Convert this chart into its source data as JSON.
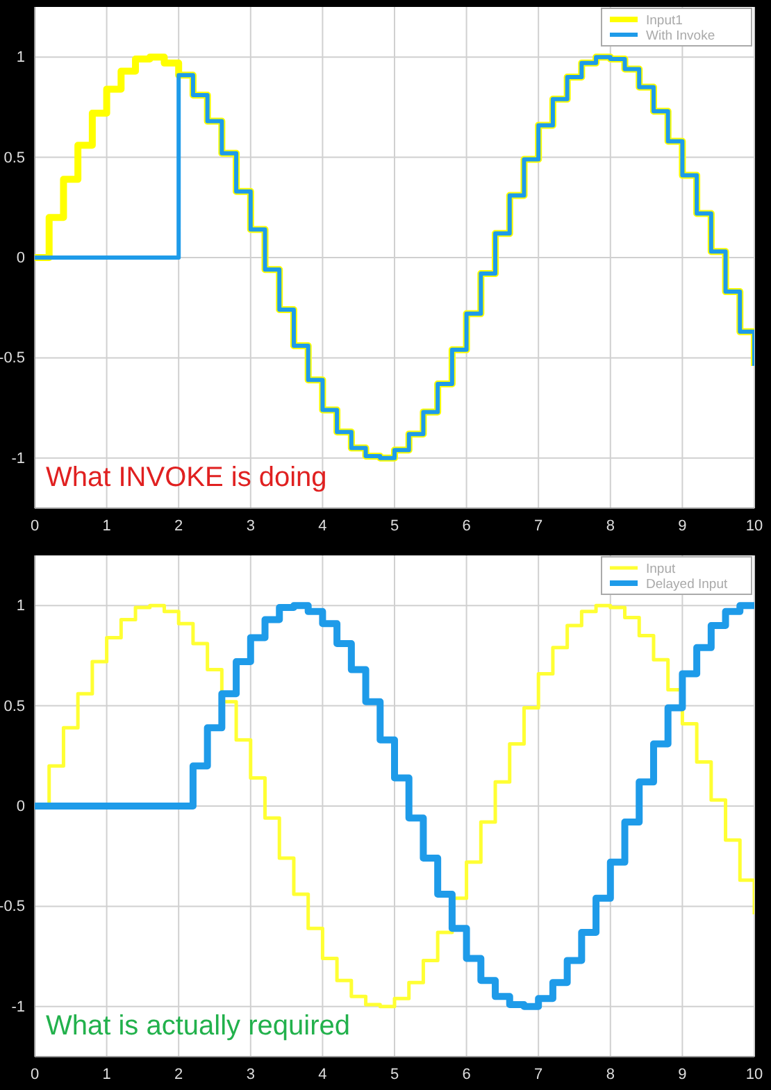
{
  "chart_data": [
    {
      "type": "step",
      "x": [
        0,
        0.2,
        0.4,
        0.6,
        0.8,
        1,
        1.2,
        1.4,
        1.6,
        1.8,
        2,
        2.2,
        2.4,
        2.6,
        2.8,
        3,
        3.2,
        3.4,
        3.6,
        3.8,
        4,
        4.2,
        4.4,
        4.6,
        4.8,
        5,
        5.2,
        5.4,
        5.6,
        5.8,
        6,
        6.2,
        6.4,
        6.6,
        6.8,
        7,
        7.2,
        7.4,
        7.6,
        7.8,
        8,
        8.2,
        8.4,
        8.6,
        8.8,
        9,
        9.2,
        9.4,
        9.6,
        9.8,
        10
      ],
      "series": [
        {
          "name": "Input1",
          "color": "#ffff00",
          "values": [
            0,
            0.2,
            0.39,
            0.56,
            0.72,
            0.84,
            0.93,
            0.99,
            1.0,
            0.97,
            0.91,
            0.81,
            0.68,
            0.52,
            0.33,
            0.14,
            -0.06,
            -0.26,
            -0.44,
            -0.61,
            -0.76,
            -0.87,
            -0.95,
            -0.99,
            -1.0,
            -0.96,
            -0.88,
            -0.77,
            -0.63,
            -0.46,
            -0.28,
            -0.08,
            0.12,
            0.31,
            0.49,
            0.66,
            0.79,
            0.9,
            0.97,
            1.0,
            0.99,
            0.94,
            0.85,
            0.73,
            0.58,
            0.41,
            0.22,
            0.03,
            -0.17,
            -0.37,
            -0.54
          ]
        },
        {
          "name": "With Invoke",
          "color": "#1e9be9",
          "values": [
            0,
            0,
            0,
            0,
            0,
            0,
            0,
            0,
            0,
            0,
            0.91,
            0.81,
            0.68,
            0.52,
            0.33,
            0.14,
            -0.06,
            -0.26,
            -0.44,
            -0.61,
            -0.76,
            -0.87,
            -0.95,
            -0.99,
            -1.0,
            -0.96,
            -0.88,
            -0.77,
            -0.63,
            -0.46,
            -0.28,
            -0.08,
            0.12,
            0.31,
            0.49,
            0.66,
            0.79,
            0.9,
            0.97,
            1.0,
            0.99,
            0.94,
            0.85,
            0.73,
            0.58,
            0.41,
            0.22,
            0.03,
            -0.17,
            -0.37,
            -0.54
          ]
        }
      ],
      "xlim": [
        0,
        10
      ],
      "xticks": [
        0,
        1,
        2,
        3,
        4,
        5,
        6,
        7,
        8,
        9,
        10
      ],
      "ylim": [
        -1.25,
        1.25
      ],
      "yticks": [
        -1,
        -0.5,
        0,
        0.5,
        1
      ],
      "grid": true,
      "legend": "top right",
      "annotations": [
        "What INVOKE is doing"
      ]
    },
    {
      "type": "step",
      "x": [
        0,
        0.2,
        0.4,
        0.6,
        0.8,
        1,
        1.2,
        1.4,
        1.6,
        1.8,
        2,
        2.2,
        2.4,
        2.6,
        2.8,
        3,
        3.2,
        3.4,
        3.6,
        3.8,
        4,
        4.2,
        4.4,
        4.6,
        4.8,
        5,
        5.2,
        5.4,
        5.6,
        5.8,
        6,
        6.2,
        6.4,
        6.6,
        6.8,
        7,
        7.2,
        7.4,
        7.6,
        7.8,
        8,
        8.2,
        8.4,
        8.6,
        8.8,
        9,
        9.2,
        9.4,
        9.6,
        9.8,
        10
      ],
      "series": [
        {
          "name": "Input",
          "color": "#ffff33",
          "values": [
            0,
            0.2,
            0.39,
            0.56,
            0.72,
            0.84,
            0.93,
            0.99,
            1.0,
            0.97,
            0.91,
            0.81,
            0.68,
            0.52,
            0.33,
            0.14,
            -0.06,
            -0.26,
            -0.44,
            -0.61,
            -0.76,
            -0.87,
            -0.95,
            -0.99,
            -1.0,
            -0.96,
            -0.88,
            -0.77,
            -0.63,
            -0.46,
            -0.28,
            -0.08,
            0.12,
            0.31,
            0.49,
            0.66,
            0.79,
            0.9,
            0.97,
            1.0,
            0.99,
            0.94,
            0.85,
            0.73,
            0.58,
            0.41,
            0.22,
            0.03,
            -0.17,
            -0.37,
            -0.54
          ]
        },
        {
          "name": "Delayed Input",
          "color": "#1e9be9",
          "values": [
            0,
            0,
            0,
            0,
            0,
            0,
            0,
            0,
            0,
            0,
            0,
            0.2,
            0.39,
            0.56,
            0.72,
            0.84,
            0.93,
            0.99,
            1.0,
            0.97,
            0.91,
            0.81,
            0.68,
            0.52,
            0.33,
            0.14,
            -0.06,
            -0.26,
            -0.44,
            -0.61,
            -0.76,
            -0.87,
            -0.95,
            -0.99,
            -1.0,
            -0.96,
            -0.88,
            -0.77,
            -0.63,
            -0.46,
            -0.28,
            -0.08,
            0.12,
            0.31,
            0.49,
            0.66,
            0.79,
            0.9,
            0.97,
            1.0,
            0.99
          ]
        }
      ],
      "xlim": [
        0,
        10
      ],
      "xticks": [
        0,
        1,
        2,
        3,
        4,
        5,
        6,
        7,
        8,
        9,
        10
      ],
      "ylim": [
        -1.25,
        1.25
      ],
      "yticks": [
        -1,
        -0.5,
        0,
        0.5,
        1
      ],
      "grid": true,
      "legend": "top right",
      "annotations": [
        "What is actually required"
      ]
    }
  ]
}
